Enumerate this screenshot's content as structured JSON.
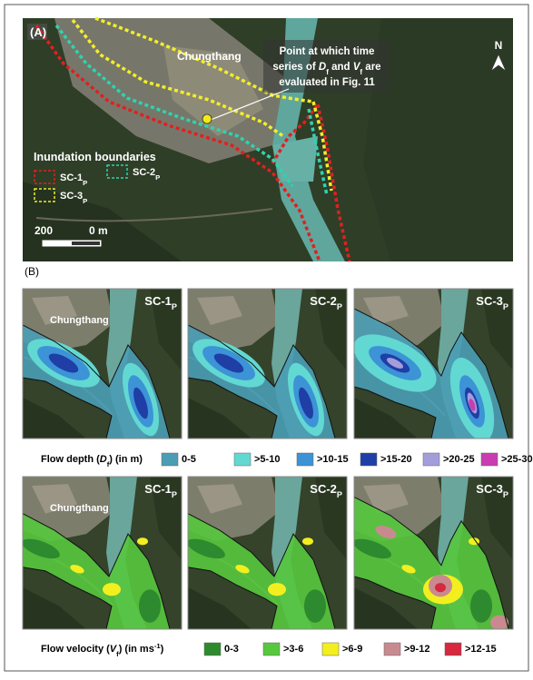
{
  "panel_a": {
    "label": "(A)",
    "place": "Chungthang",
    "north": "N",
    "annotation": [
      [
        {
          "text": "Point at which time"
        }
      ],
      [
        {
          "text": "series of "
        },
        {
          "text": "D",
          "style": "italic"
        },
        {
          "text": "f",
          "style": "sub"
        },
        {
          "text": " and "
        },
        {
          "text": "V",
          "style": "italic"
        },
        {
          "text": "f",
          "style": "sub"
        },
        {
          "text": " are"
        }
      ],
      [
        {
          "text": "evaluated in Fig. 11"
        }
      ]
    ],
    "legend_title": "Inundation boundaries",
    "boundaries": [
      {
        "name": [
          {
            "text": "SC-1"
          },
          {
            "text": "P",
            "style": "sub"
          }
        ],
        "color": "#e02020"
      },
      {
        "name": [
          {
            "text": "SC-2"
          },
          {
            "text": "P",
            "style": "sub"
          }
        ],
        "color": "#2ed3b0"
      },
      {
        "name": [
          {
            "text": "SC-3"
          },
          {
            "text": "P",
            "style": "sub"
          }
        ],
        "color": "#f2ee2a"
      }
    ],
    "scale_left": "200",
    "scale_right": "0 m"
  },
  "panel_b": {
    "label": "(B)",
    "place": "Chungthang",
    "scenarios": [
      [
        {
          "text": "SC-1"
        },
        {
          "text": "P",
          "style": "sub"
        }
      ],
      [
        {
          "text": "SC-2"
        },
        {
          "text": "P",
          "style": "sub"
        }
      ],
      [
        {
          "text": "SC-3"
        },
        {
          "text": "P",
          "style": "sub"
        }
      ]
    ],
    "depth_title": [
      {
        "text": "Flow depth ("
      },
      {
        "text": "D",
        "style": "italic"
      },
      {
        "text": "f",
        "style": "sub"
      },
      {
        "text": ") (in m)"
      }
    ],
    "depth_classes": [
      {
        "label": "0-5",
        "color": "#4a9db5"
      },
      {
        "label": ">5-10",
        "color": "#62d8d2"
      },
      {
        "label": ">10-15",
        "color": "#3c93d6"
      },
      {
        "label": ">15-20",
        "color": "#1f3ea6"
      },
      {
        "label": ">20-25",
        "color": "#a39ddc"
      },
      {
        "label": ">25-30",
        "color": "#c93db0"
      }
    ],
    "velocity_title": [
      {
        "text": "Flow velocity ("
      },
      {
        "text": "V",
        "style": "italic"
      },
      {
        "text": "f",
        "style": "sub"
      },
      {
        "text": ") (in ms"
      },
      {
        "text": "-1",
        "style": "sup"
      },
      {
        "text": ")"
      }
    ],
    "velocity_classes": [
      {
        "label": "0-3",
        "color": "#2e8a2e"
      },
      {
        "label": ">3-6",
        "color": "#57c83e"
      },
      {
        "label": ">6-9",
        "color": "#f3ef1f"
      },
      {
        "label": ">9-12",
        "color": "#c98a8f"
      },
      {
        "label": ">12-15",
        "color": "#d6283e"
      }
    ]
  }
}
